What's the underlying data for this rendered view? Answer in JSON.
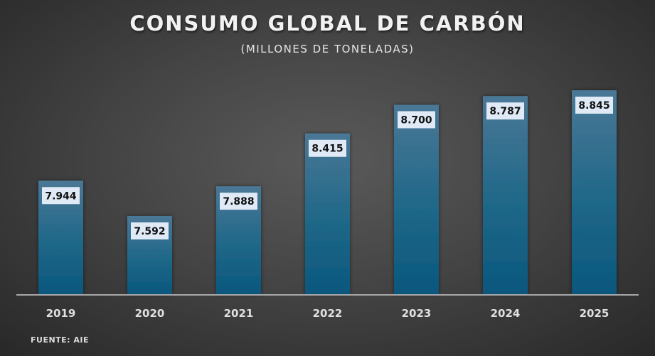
{
  "chart_data": {
    "type": "bar",
    "title": "CONSUMO GLOBAL DE CARBÓN",
    "subtitle": "(MILLONES DE TONELADAS)",
    "categories": [
      "2019",
      "2020",
      "2021",
      "2022",
      "2023",
      "2024",
      "2025"
    ],
    "values": [
      7944,
      7592,
      7888,
      8415,
      8700,
      8787,
      8845
    ],
    "data_labels": [
      "7.944",
      "7.592",
      "7.888",
      "8.415",
      "8.700",
      "8.787",
      "8.845"
    ],
    "xlabel": "",
    "ylabel": "",
    "ylim": [
      6813,
      8845
    ],
    "grid": false,
    "legend": "none",
    "source": "FUENTE:  AIE",
    "bar_color": "#0c5a80",
    "bar_top_color": "#4a7896"
  }
}
